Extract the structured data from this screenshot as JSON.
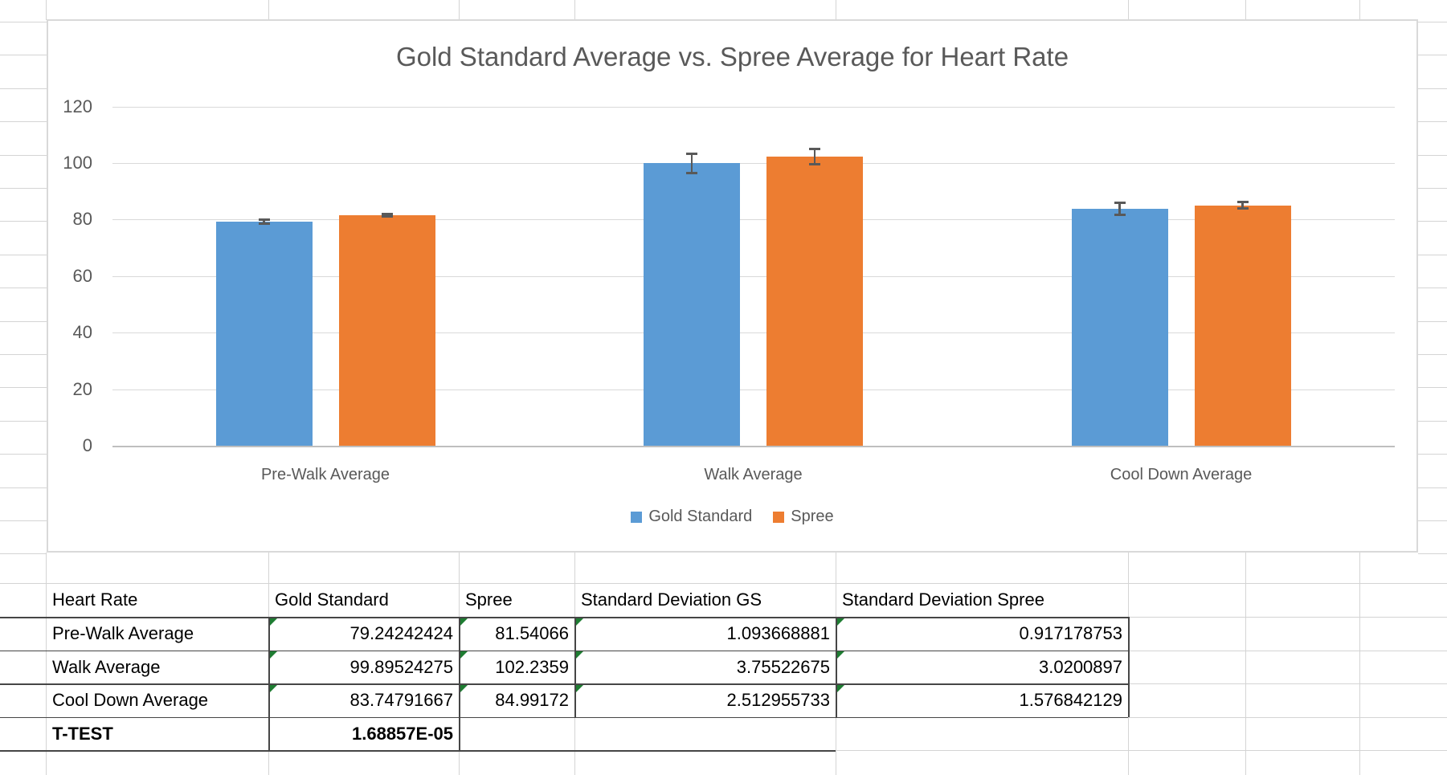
{
  "chart_data": {
    "type": "bar",
    "title": "Gold Standard Average vs. Spree Average for Heart Rate",
    "categories": [
      "Pre-Walk Average",
      "Walk Average",
      "Cool Down Average"
    ],
    "series": [
      {
        "name": "Gold Standard",
        "color": "#5B9BD5",
        "values": [
          79.24242424,
          99.89524275,
          83.74791667
        ],
        "stdev": [
          1.093668881,
          3.75522675,
          2.512955733
        ]
      },
      {
        "name": "Spree",
        "color": "#ED7D31",
        "values": [
          81.54066,
          102.2359,
          84.99172
        ],
        "stdev": [
          0.917178753,
          3.0200897,
          1.576842129
        ]
      }
    ],
    "xlabel": "",
    "ylabel": "",
    "ylim": [
      0,
      120
    ],
    "yticks": [
      0,
      20,
      40,
      60,
      80,
      100,
      120
    ],
    "grid": true,
    "error_bars": true,
    "legend_position": "bottom"
  },
  "table": {
    "headers": [
      "Heart Rate",
      "Gold Standard",
      "Spree",
      "Standard Deviation GS",
      "Standard Deviation Spree"
    ],
    "rows": [
      [
        "Pre-Walk Average",
        "79.24242424",
        "81.54066",
        "1.093668881",
        "0.917178753"
      ],
      [
        "Walk Average",
        "99.89524275",
        "102.2359",
        "3.75522675",
        "3.0200897"
      ],
      [
        "Cool Down Average",
        "83.74791667",
        "84.99172",
        "2.512955733",
        "1.576842129"
      ]
    ],
    "footer": {
      "label": "T-TEST",
      "value": "1.68857E-05"
    },
    "error_indicator": "green-triangle"
  },
  "colors": {
    "gold_standard": "#5B9BD5",
    "spree": "#ED7D31",
    "chart_text": "#595959",
    "chart_gridline": "#D9D9D9",
    "axis_line": "#BFBFBF",
    "error_bar": "#595959",
    "excel_gridline": "#D4D4D4",
    "table_border": "#464646",
    "error_indicator_green": "#1E7D32",
    "background": "#FFFFFF"
  }
}
